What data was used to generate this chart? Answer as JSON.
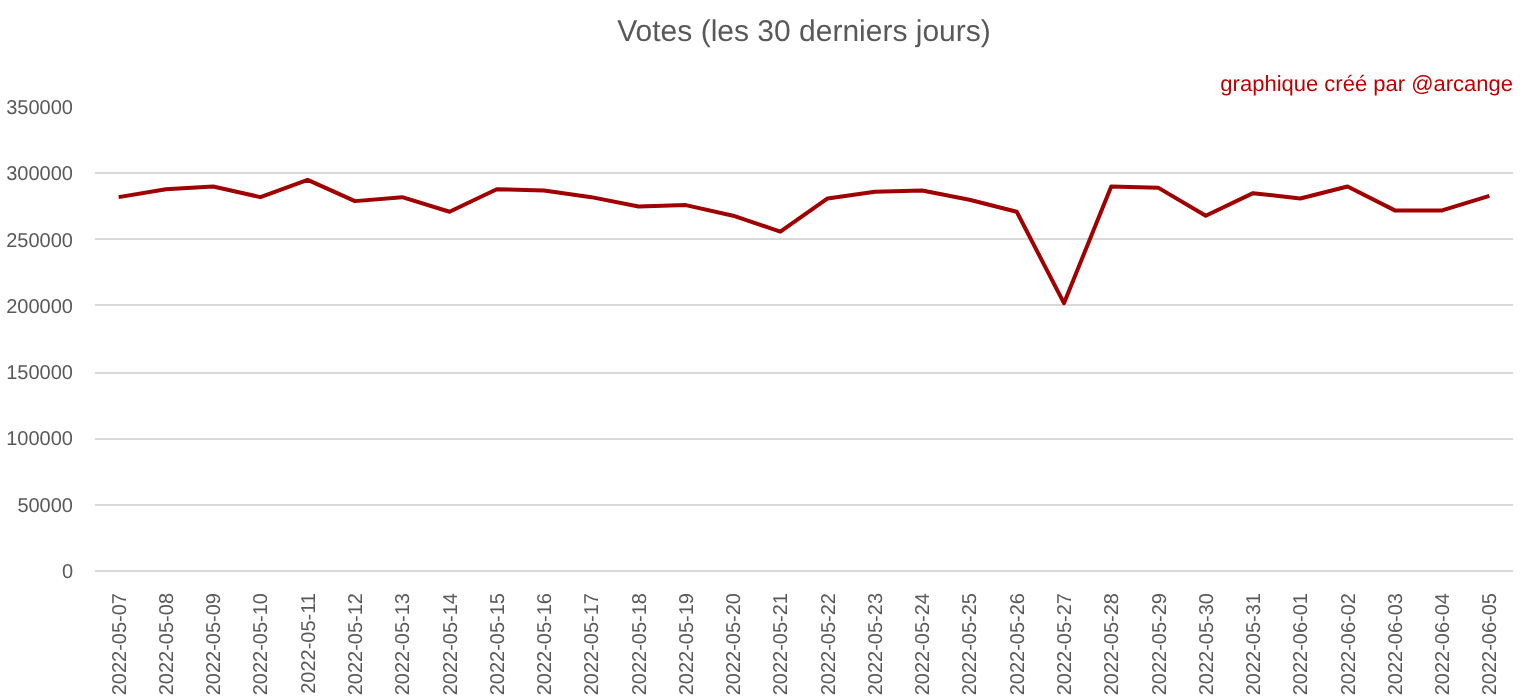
{
  "chart_data": {
    "type": "line",
    "title": "Votes (les 30 derniers jours)",
    "annotations": [
      "graphique créé par @arcange"
    ],
    "categories": [
      "2022-05-07",
      "2022-05-08",
      "2022-05-09",
      "2022-05-10",
      "2022-05-11",
      "2022-05-12",
      "2022-05-13",
      "2022-05-14",
      "2022-05-15",
      "2022-05-16",
      "2022-05-17",
      "2022-05-18",
      "2022-05-19",
      "2022-05-20",
      "2022-05-21",
      "2022-05-22",
      "2022-05-23",
      "2022-05-24",
      "2022-05-25",
      "2022-05-26",
      "2022-05-27",
      "2022-05-28",
      "2022-05-29",
      "2022-05-30",
      "2022-05-31",
      "2022-06-01",
      "2022-06-02",
      "2022-06-03",
      "2022-06-04",
      "2022-06-05"
    ],
    "series": [
      {
        "color": "#a00000",
        "values": [
          282000,
          288000,
          290000,
          282000,
          295000,
          279000,
          282000,
          271000,
          288000,
          287000,
          282000,
          275000,
          276000,
          268000,
          256000,
          281000,
          286000,
          287000,
          280000,
          271000,
          202000,
          290000,
          289000,
          268000,
          285000,
          281000,
          290000,
          272000,
          272000,
          283000
        ]
      }
    ],
    "ylim": [
      0,
      350000
    ],
    "yticks": [
      0,
      50000,
      100000,
      150000,
      200000,
      250000,
      300000,
      350000
    ],
    "grid": "y",
    "marker": "none",
    "line_style": "solid"
  }
}
